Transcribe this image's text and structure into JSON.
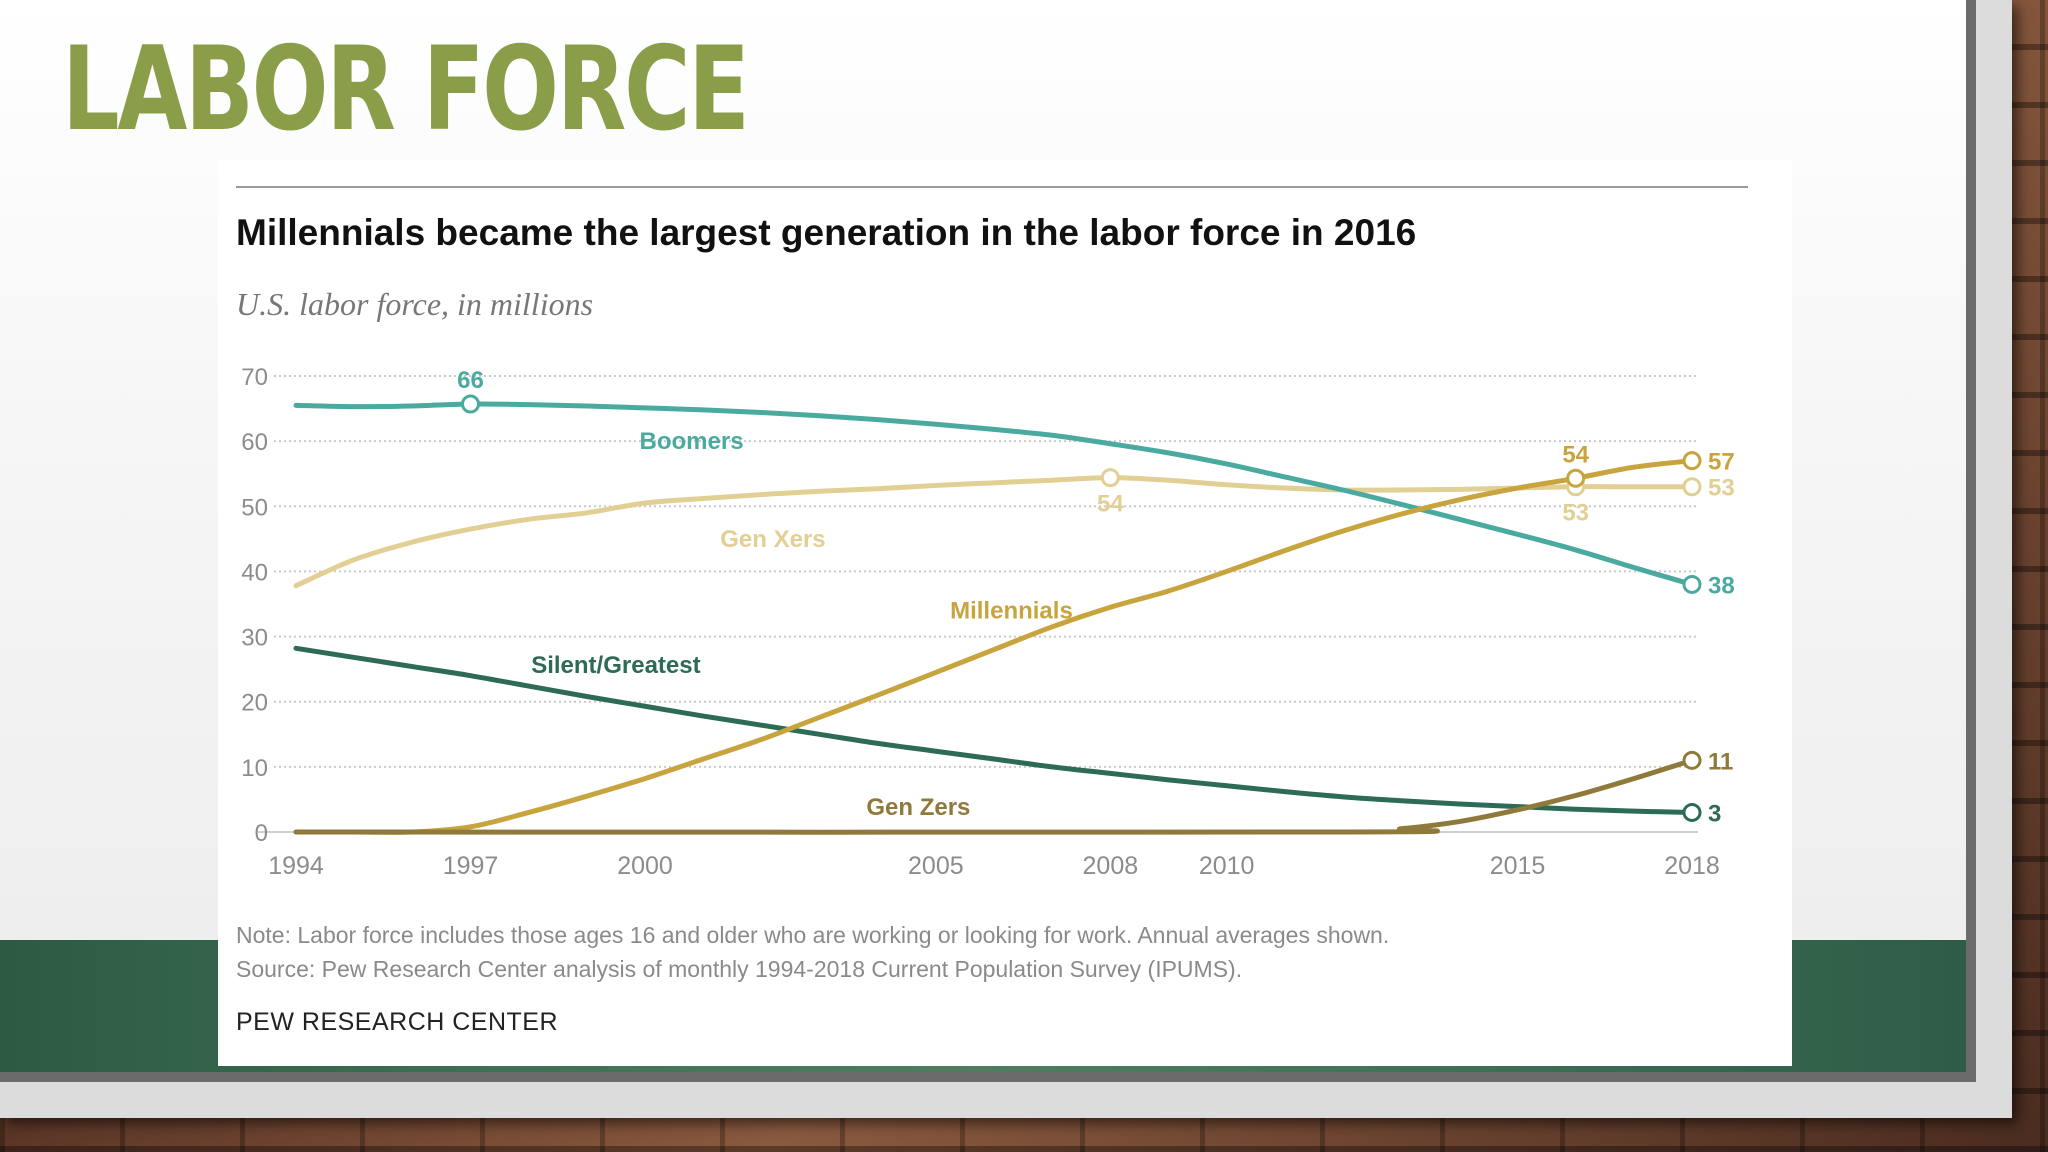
{
  "slide": {
    "title": "LABOR FORCE"
  },
  "chart": {
    "title": "Millennials became the largest generation in the labor force in 2016",
    "subtitle": "U.S. labor force, in millions",
    "note": "Note: Labor force includes those ages 16 and older who are working or looking for work. Annual averages shown.",
    "source": "Source: Pew Research Center analysis of monthly 1994-2018 Current Population Survey (IPUMS).",
    "brand": "PEW RESEARCH CENTER"
  },
  "chart_data": {
    "type": "line",
    "title": "Millennials became the largest generation in the labor force in 2016",
    "subtitle": "U.S. labor force, in millions",
    "xlabel": "",
    "ylabel": "",
    "xlim": [
      1994,
      2018
    ],
    "ylim": [
      0,
      70
    ],
    "x_ticks": [
      1994,
      1997,
      2000,
      2005,
      2008,
      2010,
      2015,
      2018
    ],
    "y_ticks": [
      0,
      10,
      20,
      30,
      40,
      50,
      60,
      70
    ],
    "grid": true,
    "legend": "inline labels",
    "series": [
      {
        "name": "Boomers",
        "color": "#4aaa9f",
        "x": [
          1994,
          1995,
          1996,
          1997,
          1998,
          1999,
          2000,
          2001,
          2002,
          2003,
          2004,
          2005,
          2006,
          2007,
          2008,
          2009,
          2010,
          2011,
          2012,
          2013,
          2014,
          2015,
          2016,
          2017,
          2018
        ],
        "values": [
          65.5,
          65.3,
          65.4,
          65.7,
          65.6,
          65.4,
          65.1,
          64.8,
          64.4,
          63.9,
          63.3,
          62.6,
          61.8,
          60.9,
          59.6,
          58.2,
          56.5,
          54.5,
          52.5,
          50.3,
          48.0,
          45.7,
          43.3,
          40.6,
          38
        ],
        "label_position": [
          2000.8,
          60
        ],
        "annotations": [
          {
            "x": 1997,
            "y": 65.7,
            "text": "66",
            "position": "above"
          },
          {
            "x": 2018,
            "y": 38,
            "text": "38",
            "position": "right"
          }
        ]
      },
      {
        "name": "Gen Xers",
        "color": "#e2cf94",
        "x": [
          1994,
          1995,
          1996,
          1997,
          1998,
          1999,
          2000,
          2001,
          2002,
          2003,
          2004,
          2005,
          2006,
          2007,
          2008,
          2009,
          2010,
          2011,
          2012,
          2013,
          2014,
          2015,
          2016,
          2017,
          2018
        ],
        "values": [
          37.8,
          41.8,
          44.5,
          46.5,
          48.0,
          49.0,
          50.5,
          51.2,
          51.8,
          52.3,
          52.7,
          53.2,
          53.6,
          54.0,
          54.4,
          54.0,
          53.3,
          52.8,
          52.5,
          52.5,
          52.6,
          52.8,
          53.0,
          53.0,
          53
        ],
        "label_position": [
          2002.2,
          45
        ],
        "annotations": [
          {
            "x": 2008,
            "y": 54.4,
            "text": "54",
            "position": "below"
          },
          {
            "x": 2016,
            "y": 53,
            "text": "53",
            "position": "below"
          },
          {
            "x": 2018,
            "y": 53,
            "text": "53",
            "position": "right"
          }
        ]
      },
      {
        "name": "Millennials",
        "color": "#c7a43d",
        "x": [
          1994,
          1995,
          1996,
          1997,
          1998,
          1999,
          2000,
          2001,
          2002,
          2003,
          2004,
          2005,
          2006,
          2007,
          2008,
          2009,
          2010,
          2011,
          2012,
          2013,
          2014,
          2015,
          2016,
          2017,
          2018
        ],
        "values": [
          0,
          0,
          0,
          0.8,
          3.0,
          5.5,
          8.2,
          11.2,
          14.2,
          17.6,
          21.0,
          24.5,
          28.0,
          31.5,
          34.5,
          37.0,
          40.0,
          43.2,
          46.2,
          48.8,
          51.0,
          52.8,
          54.3,
          56.0,
          57
        ],
        "label_position": [
          2006.3,
          34
        ],
        "annotations": [
          {
            "x": 2016,
            "y": 54.3,
            "text": "54",
            "position": "above"
          },
          {
            "x": 2018,
            "y": 57,
            "text": "57",
            "position": "right"
          }
        ]
      },
      {
        "name": "Silent/Greatest",
        "color": "#2d6b55",
        "x": [
          1994,
          1995,
          1996,
          1997,
          1998,
          1999,
          2000,
          2001,
          2002,
          2003,
          2004,
          2005,
          2006,
          2007,
          2008,
          2009,
          2010,
          2011,
          2012,
          2013,
          2014,
          2015,
          2016,
          2017,
          2018
        ],
        "values": [
          28.2,
          26.8,
          25.4,
          24.0,
          22.4,
          20.8,
          19.3,
          17.8,
          16.4,
          15.0,
          13.6,
          12.4,
          11.2,
          10.0,
          9.0,
          8.0,
          7.1,
          6.2,
          5.4,
          4.8,
          4.3,
          3.9,
          3.5,
          3.2,
          3
        ],
        "label_position": [
          1999.5,
          25.6
        ],
        "annotations": [
          {
            "x": 2018,
            "y": 3,
            "text": "3",
            "position": "right"
          }
        ]
      },
      {
        "name": "Gen Zers",
        "color": "#8f7a3c",
        "x": [
          1994,
          2012,
          2013,
          2014,
          2015,
          2016,
          2017,
          2018
        ],
        "values": [
          0,
          0,
          0.5,
          1.6,
          3.4,
          5.6,
          8.2,
          11
        ],
        "label_position": [
          2004.7,
          3.8
        ],
        "annotations": [
          {
            "x": 2018,
            "y": 11,
            "text": "11",
            "position": "right"
          }
        ]
      }
    ]
  }
}
